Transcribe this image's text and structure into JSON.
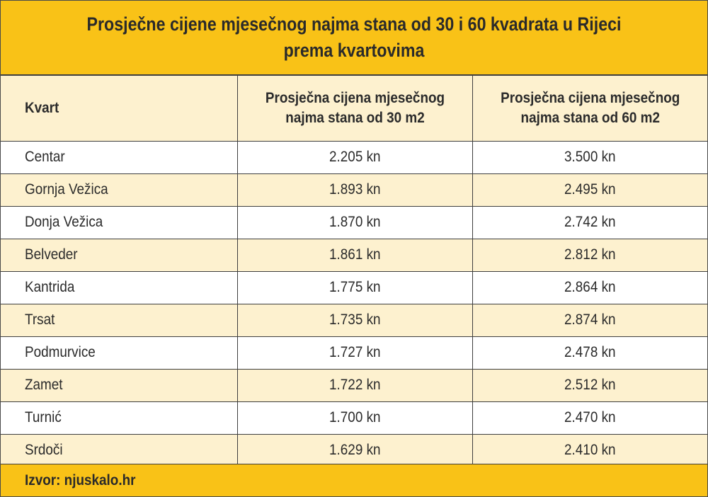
{
  "chart_data": {
    "type": "table",
    "title": "Prosječne cijene mjesečnog najma stana od 30 i 60 kvadrata u Rijeci prema kvartovima",
    "columns": [
      "Kvart",
      "Prosječna cijena mjesečnog najma stana od 30 m2",
      "Prosječna cijena mjesečnog najma stana od 60 m2"
    ],
    "rows": [
      [
        "Centar",
        "2.205 kn",
        "3.500 kn"
      ],
      [
        "Gornja Vežica",
        "1.893 kn",
        "2.495 kn"
      ],
      [
        "Donja Vežica",
        "1.870 kn",
        "2.742 kn"
      ],
      [
        "Belveder",
        "1.861 kn",
        "2.812 kn"
      ],
      [
        "Kantrida",
        "1.775 kn",
        "2.864 kn"
      ],
      [
        "Trsat",
        "1.735 kn",
        "2.874 kn"
      ],
      [
        "Podmurvice",
        "1.727 kn",
        "2.478 kn"
      ],
      [
        "Zamet",
        "1.722 kn",
        "2.512 kn"
      ],
      [
        "Turnić",
        "1.700 kn",
        "2.470 kn"
      ],
      [
        "Srdoči",
        "1.629 kn",
        "2.410 kn"
      ]
    ],
    "source": "Izvor: njuskalo.hr"
  },
  "colors": {
    "accent": "#f9c217",
    "stripe": "#fdf1cf",
    "text": "#2a2a2a",
    "border": "#3e3e3e"
  }
}
